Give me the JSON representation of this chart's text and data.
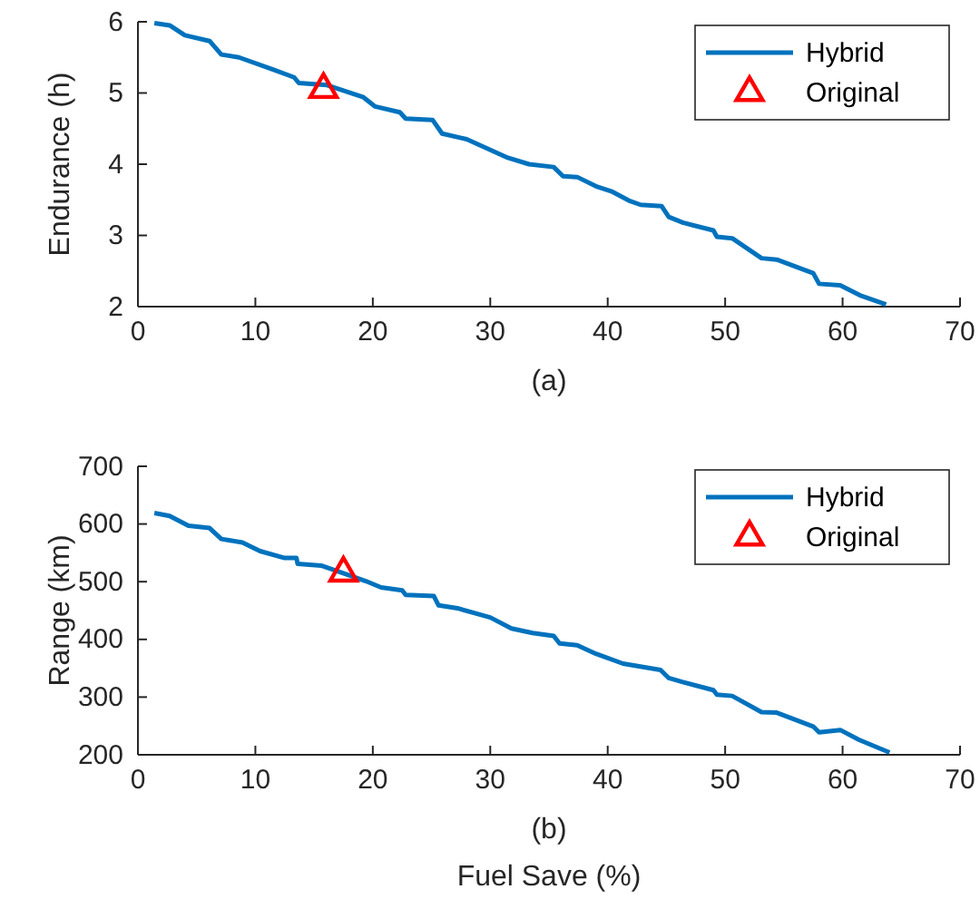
{
  "chart_data": [
    {
      "type": "line",
      "xlabel": "(a)",
      "ylabel": "Endurance (h)",
      "xlim": [
        0,
        70
      ],
      "xticks": [
        0,
        10,
        20,
        30,
        40,
        50,
        60,
        70
      ],
      "ylim": [
        2,
        6
      ],
      "yticks": [
        2,
        3,
        4,
        5,
        6
      ],
      "legend": "top right",
      "grid": false,
      "series": [
        {
          "name": "Hybrid",
          "color": "#0072bd",
          "x": [
            1.4,
            2.7,
            4.0,
            6.1,
            7.1,
            8.6,
            11.5,
            13.3,
            13.7,
            16.1,
            19.2,
            20.2,
            22.3,
            22.8,
            25.1,
            25.9,
            28.0,
            31.5,
            33.3,
            35.4,
            36.2,
            37.4,
            39.0,
            40.3,
            41.8,
            42.8,
            44.6,
            45.2,
            46.4,
            49.0,
            49.3,
            50.6,
            53.1,
            54.4,
            56.2,
            57.5,
            58.0,
            59.8,
            61.6,
            63.7
          ],
          "values": [
            5.98,
            5.95,
            5.81,
            5.73,
            5.54,
            5.5,
            5.33,
            5.22,
            5.14,
            5.11,
            4.94,
            4.81,
            4.73,
            4.64,
            4.62,
            4.43,
            4.35,
            4.09,
            4.0,
            3.96,
            3.83,
            3.82,
            3.69,
            3.62,
            3.49,
            3.43,
            3.41,
            3.26,
            3.18,
            3.07,
            2.98,
            2.96,
            2.68,
            2.66,
            2.55,
            2.47,
            2.32,
            2.3,
            2.15,
            2.03
          ]
        },
        {
          "name": "Original",
          "type": "scatter",
          "marker": "triangle",
          "color": "#ff0000",
          "x": [
            15.8
          ],
          "values": [
            5.05
          ]
        }
      ]
    },
    {
      "type": "line",
      "xlabel": "Fuel Save (%)",
      "ylabel": "Range (km)",
      "annotations": [
        "(b)"
      ],
      "xlim": [
        0,
        70
      ],
      "xticks": [
        0,
        10,
        20,
        30,
        40,
        50,
        60,
        70
      ],
      "ylim": [
        200,
        700
      ],
      "yticks": [
        200,
        300,
        400,
        500,
        600,
        700
      ],
      "legend": "top right",
      "grid": false,
      "series": [
        {
          "name": "Hybrid",
          "color": "#0072bd",
          "x": [
            1.4,
            2.7,
            4.3,
            6.1,
            7.1,
            8.9,
            10.4,
            12.5,
            13.5,
            13.6,
            15.6,
            17.6,
            19.4,
            20.7,
            22.5,
            22.8,
            25.2,
            25.6,
            27.2,
            30.0,
            31.8,
            33.6,
            35.4,
            35.9,
            37.4,
            39.0,
            41.3,
            44.5,
            45.2,
            46.4,
            49.0,
            49.3,
            50.6,
            53.1,
            54.4,
            57.5,
            58.0,
            59.8,
            61.4,
            64.0
          ],
          "values": [
            619,
            614,
            597,
            593,
            574,
            568,
            553,
            541,
            541,
            531,
            528,
            514,
            501,
            490,
            485,
            477,
            475,
            459,
            454,
            438,
            419,
            411,
            406,
            393,
            390,
            375,
            358,
            347,
            333,
            326,
            312,
            304,
            302,
            274,
            273,
            249,
            239,
            243,
            226,
            204
          ]
        },
        {
          "name": "Original",
          "type": "scatter",
          "marker": "triangle",
          "color": "#ff0000",
          "x": [
            17.5
          ],
          "values": [
            515
          ]
        }
      ]
    }
  ]
}
